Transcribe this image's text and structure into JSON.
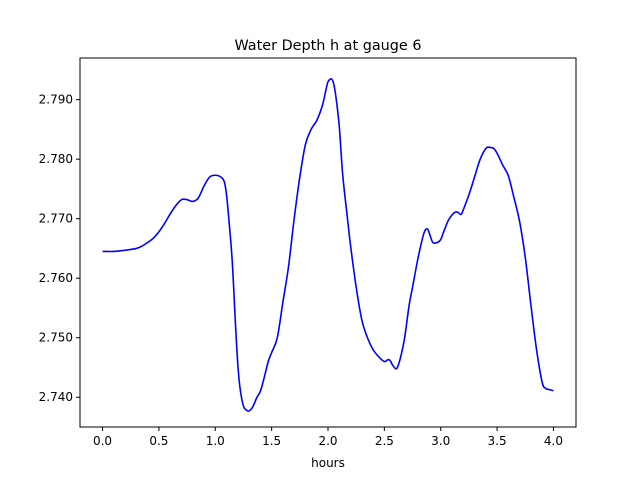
{
  "chart_data": {
    "type": "line",
    "title": "Water Depth h at gauge 6",
    "xlabel": "hours",
    "ylabel": "",
    "xlim": [
      -0.2,
      4.2
    ],
    "ylim": [
      2.735,
      2.797
    ],
    "xticks": [
      0.0,
      0.5,
      1.0,
      1.5,
      2.0,
      2.5,
      3.0,
      3.5,
      4.0
    ],
    "xtick_labels": [
      "0.0",
      "0.5",
      "1.0",
      "1.5",
      "2.0",
      "2.5",
      "3.0",
      "3.5",
      "4.0"
    ],
    "yticks": [
      2.74,
      2.75,
      2.76,
      2.77,
      2.78,
      2.79
    ],
    "ytick_labels": [
      "2.740",
      "2.750",
      "2.760",
      "2.770",
      "2.780",
      "2.790"
    ],
    "grid": false,
    "series": [
      {
        "color": "#0000ff",
        "x": [
          0.0,
          0.1,
          0.2,
          0.3,
          0.35,
          0.4,
          0.45,
          0.5,
          0.55,
          0.6,
          0.65,
          0.7,
          0.75,
          0.8,
          0.85,
          0.9,
          0.95,
          1.0,
          1.05,
          1.08,
          1.1,
          1.12,
          1.15,
          1.18,
          1.2,
          1.22,
          1.25,
          1.28,
          1.3,
          1.33,
          1.37,
          1.4,
          1.43,
          1.47,
          1.5,
          1.55,
          1.6,
          1.65,
          1.7,
          1.75,
          1.8,
          1.85,
          1.9,
          1.95,
          1.98,
          2.0,
          2.03,
          2.05,
          2.07,
          2.1,
          2.13,
          2.17,
          2.2,
          2.25,
          2.3,
          2.35,
          2.4,
          2.45,
          2.5,
          2.53,
          2.55,
          2.57,
          2.6,
          2.62,
          2.65,
          2.68,
          2.72,
          2.75,
          2.8,
          2.85,
          2.88,
          2.9,
          2.93,
          2.97,
          3.0,
          3.03,
          3.07,
          3.12,
          3.15,
          3.18,
          3.2,
          3.25,
          3.3,
          3.35,
          3.4,
          3.43,
          3.47,
          3.5,
          3.55,
          3.6,
          3.65,
          3.7,
          3.75,
          3.8,
          3.85,
          3.9,
          3.93,
          3.96,
          4.0
        ],
        "y": [
          2.7645,
          2.7645,
          2.7647,
          2.765,
          2.7654,
          2.766,
          2.7667,
          2.7678,
          2.7692,
          2.7708,
          2.7722,
          2.7732,
          2.7732,
          2.7729,
          2.7735,
          2.7755,
          2.777,
          2.7773,
          2.777,
          2.7762,
          2.774,
          2.77,
          2.763,
          2.752,
          2.7455,
          2.7415,
          2.7385,
          2.7378,
          2.7377,
          2.7383,
          2.74,
          2.741,
          2.743,
          2.746,
          2.7475,
          2.75,
          2.756,
          2.762,
          2.77,
          2.777,
          2.7825,
          2.785,
          2.7865,
          2.789,
          2.7915,
          2.793,
          2.7935,
          2.7927,
          2.7905,
          2.7855,
          2.7775,
          2.7705,
          2.7655,
          2.7585,
          2.753,
          2.75,
          2.748,
          2.7468,
          2.746,
          2.7463,
          2.7462,
          2.7455,
          2.7448,
          2.7452,
          2.7472,
          2.75,
          2.7555,
          2.7585,
          2.7635,
          2.7675,
          2.7683,
          2.7675,
          2.766,
          2.766,
          2.7665,
          2.768,
          2.7698,
          2.771,
          2.7711,
          2.7707,
          2.7715,
          2.774,
          2.777,
          2.78,
          2.7818,
          2.782,
          2.7818,
          2.781,
          2.779,
          2.7772,
          2.7735,
          2.7695,
          2.7635,
          2.7555,
          2.748,
          2.7425,
          2.7415,
          2.7413,
          2.7411
        ]
      }
    ]
  }
}
